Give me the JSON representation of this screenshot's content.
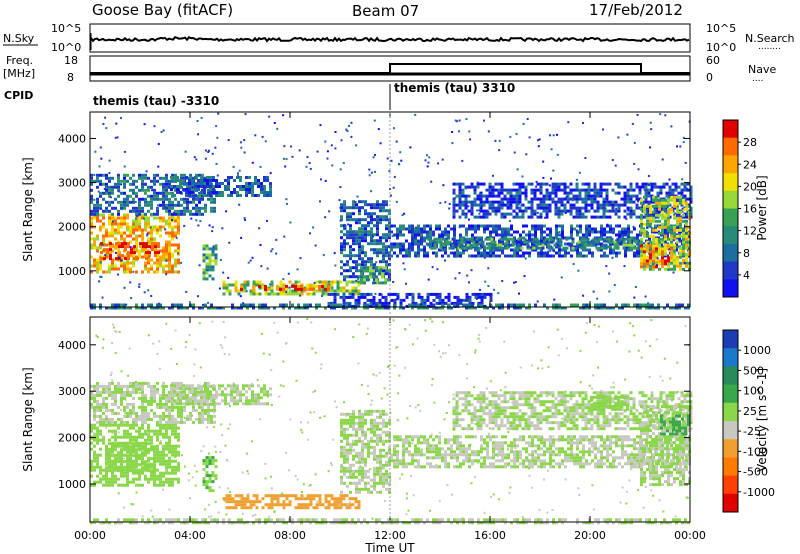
{
  "header": {
    "station": "Goose Bay (fitACF)",
    "beam": "Beam 07",
    "date": "17/Feb/2012"
  },
  "top_panels": {
    "nsky_label": "N.Sky",
    "nsearch_label": "N.Search",
    "nsearch_dots": "........",
    "noise_ticks_left": [
      "10^5",
      "10^0"
    ],
    "noise_ticks_right": [
      "10^5",
      "10^0"
    ],
    "freq_label": "Freq.",
    "freq_unit": "[MHz]",
    "freq_ticks": [
      "18",
      "8"
    ],
    "nave_label": "Nave",
    "nave_dots": "....",
    "nave_ticks": [
      "60",
      "0"
    ],
    "cpid_label": "CPID",
    "cpid_segments": [
      "themis (tau) -3310",
      "themis (tau) 3310"
    ]
  },
  "chart_data": [
    {
      "type": "heatmap",
      "title": "",
      "xlabel": "",
      "ylabel": "Slant Range [km]",
      "xlim": [
        0,
        24
      ],
      "ylim": [
        180,
        4600
      ],
      "x_ticks": [
        0,
        4,
        8,
        12,
        16,
        20,
        24
      ],
      "y_ticks": [
        1000,
        2000,
        3000,
        4000
      ],
      "colorbar": {
        "label": "Power [dB]",
        "ticks": [
          "28",
          "24",
          "20",
          "16",
          "12",
          "8",
          "4"
        ],
        "colors": [
          "#e00000",
          "#ff6a00",
          "#ffa500",
          "#f0e000",
          "#98d838",
          "#3aa055",
          "#2a8a7a",
          "#1c6ea0",
          "#2038c8",
          "#1010f0"
        ]
      },
      "regions": [
        {
          "t0": 0.0,
          "t1": 3.6,
          "r0": 1000,
          "r1": 2300,
          "value": 22
        },
        {
          "t0": 0.4,
          "t1": 2.8,
          "r0": 1250,
          "r1": 1650,
          "value": 28
        },
        {
          "t0": 0.0,
          "t1": 5.0,
          "r0": 2300,
          "r1": 3200,
          "value": 9
        },
        {
          "t0": 3.2,
          "t1": 7.2,
          "r0": 2700,
          "r1": 3150,
          "value": 8
        },
        {
          "t0": 4.5,
          "t1": 5.1,
          "r0": 850,
          "r1": 1600,
          "value": 14
        },
        {
          "t0": 5.3,
          "t1": 10.8,
          "r0": 480,
          "r1": 780,
          "value": 18
        },
        {
          "t0": 6.0,
          "t1": 9.6,
          "r0": 560,
          "r1": 680,
          "value": 26
        },
        {
          "t0": 10.0,
          "t1": 12.0,
          "r0": 800,
          "r1": 2600,
          "value": 8
        },
        {
          "t0": 10.8,
          "t1": 12.0,
          "r0": 700,
          "r1": 1100,
          "value": 14
        },
        {
          "t0": 12.0,
          "t1": 24.0,
          "r0": 1350,
          "r1": 2050,
          "value": 7
        },
        {
          "t0": 13.5,
          "t1": 22.0,
          "r0": 1500,
          "r1": 1750,
          "value": 12
        },
        {
          "t0": 14.5,
          "t1": 24.0,
          "r0": 2200,
          "r1": 3000,
          "value": 6
        },
        {
          "t0": 22.0,
          "t1": 24.0,
          "r0": 1000,
          "r1": 2700,
          "value": 18
        },
        {
          "t0": 22.0,
          "t1": 23.3,
          "r0": 1100,
          "r1": 1600,
          "value": 24
        },
        {
          "t0": 9.5,
          "t1": 16.0,
          "r0": 200,
          "r1": 500,
          "value": 5
        },
        {
          "t0": 0.0,
          "t1": 24.0,
          "r0": 180,
          "r1": 260,
          "value": 10
        }
      ]
    },
    {
      "type": "heatmap",
      "title": "",
      "xlabel": "Time UT",
      "ylabel": "Slant Range [km]",
      "xlim": [
        0,
        24
      ],
      "ylim": [
        180,
        4600
      ],
      "x_ticks": [
        0,
        4,
        8,
        12,
        16,
        20,
        24
      ],
      "x_tick_labels": [
        "00:00",
        "04:00",
        "08:00",
        "12:00",
        "16:00",
        "20:00",
        "00:00"
      ],
      "y_ticks": [
        1000,
        2000,
        3000,
        4000
      ],
      "colorbar": {
        "label": "Velocity [m s^-1]",
        "ticks": [
          "1000",
          "500",
          "100",
          "25",
          "-25",
          "-100",
          "-500",
          "-1000"
        ],
        "colors": [
          "#1c3cb4",
          "#1c78c8",
          "#2a8a5a",
          "#3aa84a",
          "#8ad84a",
          "#c8c8c0",
          "#f0a030",
          "#ff7a00",
          "#ff4000",
          "#e00000"
        ]
      },
      "regions": [
        {
          "t0": 0.0,
          "t1": 3.6,
          "r0": 1000,
          "r1": 2300,
          "value": 80
        },
        {
          "t0": 0.6,
          "t1": 2.6,
          "r0": 1300,
          "r1": 1900,
          "value": 150
        },
        {
          "t0": 0.0,
          "t1": 5.0,
          "r0": 2300,
          "r1": 3200,
          "value": 0
        },
        {
          "t0": 3.2,
          "t1": 7.2,
          "r0": 2700,
          "r1": 3150,
          "value": 0
        },
        {
          "t0": 4.5,
          "t1": 5.1,
          "r0": 850,
          "r1": 1600,
          "value": 200
        },
        {
          "t0": 5.3,
          "t1": 10.8,
          "r0": 480,
          "r1": 780,
          "value": -300
        },
        {
          "t0": 10.0,
          "t1": 12.0,
          "r0": 800,
          "r1": 2600,
          "value": 0
        },
        {
          "t0": 12.0,
          "t1": 24.0,
          "r0": 1350,
          "r1": 2050,
          "value": 0
        },
        {
          "t0": 14.5,
          "t1": 24.0,
          "r0": 2200,
          "r1": 3000,
          "value": 0
        },
        {
          "t0": 20.0,
          "t1": 21.5,
          "r0": 2600,
          "r1": 2900,
          "value": 150
        },
        {
          "t0": 22.0,
          "t1": 24.0,
          "r0": 1000,
          "r1": 2700,
          "value": 0
        },
        {
          "t0": 22.8,
          "t1": 24.0,
          "r0": 2100,
          "r1": 2500,
          "value": 300
        },
        {
          "t0": 0.0,
          "t1": 24.0,
          "r0": 180,
          "r1": 260,
          "value": 0
        }
      ]
    }
  ]
}
